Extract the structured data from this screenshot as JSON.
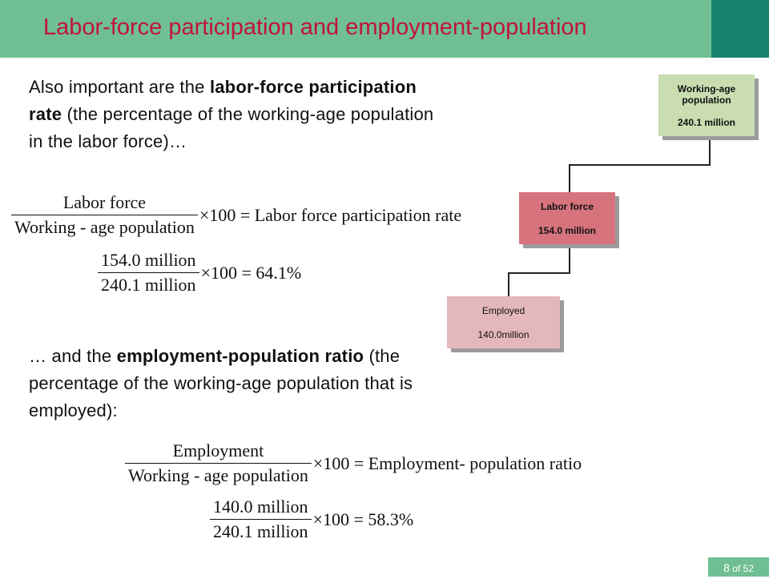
{
  "slide": {
    "title": "Labor-force participation and employment-population",
    "page_number": "8",
    "page_total": "of 52"
  },
  "para1": {
    "t1": "Also important are the ",
    "b1": "labor-force participation rate",
    "t2": " (the percentage of the working-age population in the labor force)…"
  },
  "eq1": {
    "numerator": "Labor force",
    "denominator": "Working - age population",
    "operator": "×100 = Labor force participation rate"
  },
  "eq2": {
    "numerator": "154.0 million",
    "denominator": "240.1 million",
    "operator": "×100 = 64.1%"
  },
  "para2": {
    "t1": "… and the ",
    "b1": "employment-population ratio",
    "t2": " (the percentage of the working-age population that is employed):"
  },
  "eq3": {
    "numerator": "Employment",
    "denominator": "Working - age population",
    "operator": "×100 = Employment- population ratio"
  },
  "eq4": {
    "numerator": "140.0 million",
    "denominator": "240.1 million",
    "operator": "×100 = 58.3%"
  },
  "diagram": {
    "working_age": {
      "label_line1": "Working-age",
      "label_line2": "population",
      "value": "240.1 million",
      "color": "#c9ddb1"
    },
    "labor_force": {
      "label": "Labor force",
      "value": "154.0 million",
      "color": "#d6737d"
    },
    "employed": {
      "label": "Employed",
      "value": "140.0million",
      "color": "#e4b7ba"
    }
  }
}
